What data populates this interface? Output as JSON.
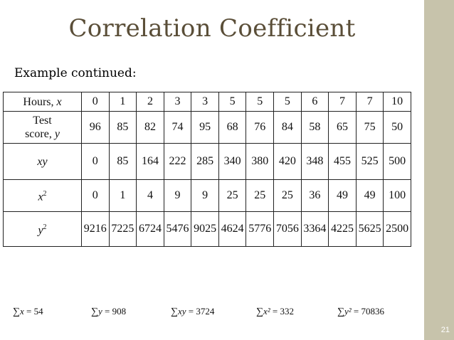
{
  "slide": {
    "title": "Correlation Coefficient",
    "subtitle": "Example continued:",
    "page_number": "21",
    "colors": {
      "title": "#5a4e38",
      "sidebar": "#c7c3ab"
    }
  },
  "table": {
    "rows": [
      {
        "header": "Hours, x",
        "cells": [
          "0",
          "1",
          "2",
          "3",
          "3",
          "5",
          "5",
          "5",
          "6",
          "7",
          "7",
          "10"
        ]
      },
      {
        "header": "Test score, y",
        "cells": [
          "96",
          "85",
          "82",
          "74",
          "95",
          "68",
          "76",
          "84",
          "58",
          "65",
          "75",
          "50"
        ]
      },
      {
        "header": "xy",
        "cells": [
          "0",
          "85",
          "164",
          "222",
          "285",
          "340",
          "380",
          "420",
          "348",
          "455",
          "525",
          "500"
        ]
      },
      {
        "header": "x2",
        "cells": [
          "0",
          "1",
          "4",
          "9",
          "9",
          "25",
          "25",
          "25",
          "36",
          "49",
          "49",
          "100"
        ]
      },
      {
        "header": "y2",
        "cells": [
          "9216",
          "7225",
          "6724",
          "5476",
          "9025",
          "4624",
          "5776",
          "7056",
          "3364",
          "4225",
          "5625",
          "2500"
        ]
      }
    ]
  },
  "sums": {
    "sum_symbol": "∑",
    "items": [
      {
        "label": "x",
        "value": "= 54"
      },
      {
        "label": "y",
        "value": "= 908"
      },
      {
        "label": "xy",
        "value": "= 3724"
      },
      {
        "label": "x²",
        "value": "= 332"
      },
      {
        "label": "y²",
        "value": "= 70836"
      }
    ]
  }
}
